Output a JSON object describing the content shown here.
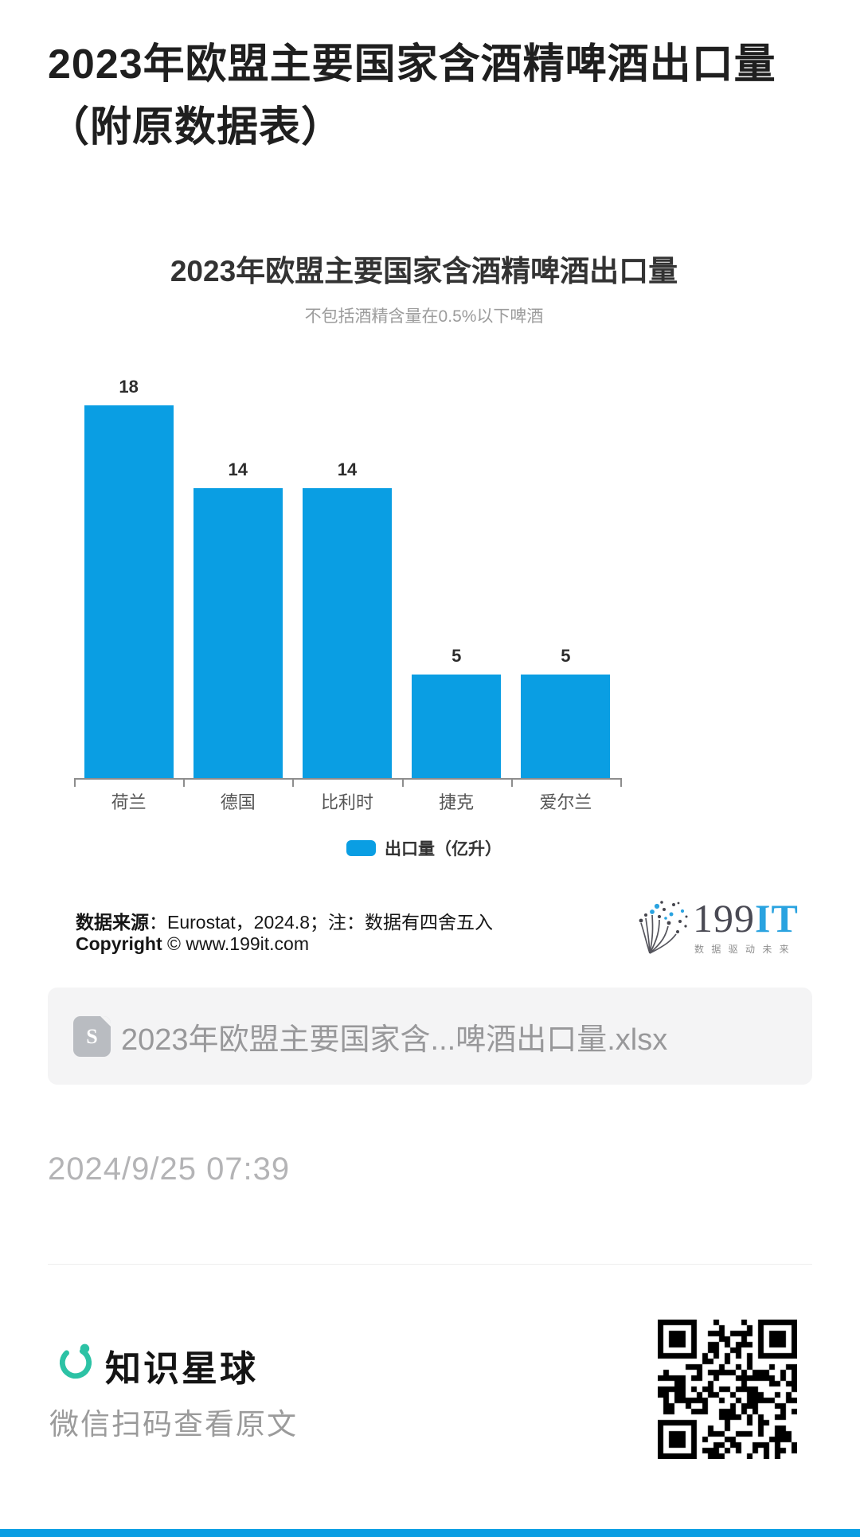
{
  "article": {
    "title": "2023年欧盟主要国家含酒精啤酒出口量（附原数据表）",
    "timestamp": "2024/9/25 07:39"
  },
  "chart_data": {
    "type": "bar",
    "title": "2023年欧盟主要国家含酒精啤酒出口量",
    "subtitle": "不包括酒精含量在0.5%以下啤酒",
    "categories": [
      "荷兰",
      "德国",
      "比利时",
      "捷克",
      "爱尔兰"
    ],
    "values": [
      18,
      14,
      14,
      5,
      5
    ],
    "series_name": "出口量（亿升）",
    "legend": [
      "出口量（亿升）"
    ],
    "legend_position": "bottom",
    "value_labels_shown": true,
    "grid": false,
    "y_axis_shown": false,
    "ylim": [
      0,
      18
    ],
    "bar_color": "#0a9ee3"
  },
  "chart_footer": {
    "source_label": "数据来源",
    "source_rest": "：Eurostat，2024.8；注：数据有四舍五入",
    "copyright_label": "Copyright",
    "copyright_rest": " © www.199it.com",
    "logo_gray": "199",
    "logo_blue": "IT",
    "logo_tagline": "数 据 驱 动 未 来"
  },
  "attachment": {
    "filename": "2023年欧盟主要国家含...啤酒出口量.xlsx",
    "icon_glyph": "S"
  },
  "footer": {
    "brand": "知识星球",
    "tagline": "微信扫码查看原文"
  },
  "colors": {
    "accent_blue": "#0a9ee3",
    "brand_teal": "#2cc2a5",
    "logo_it_blue": "#2aa3e0"
  }
}
